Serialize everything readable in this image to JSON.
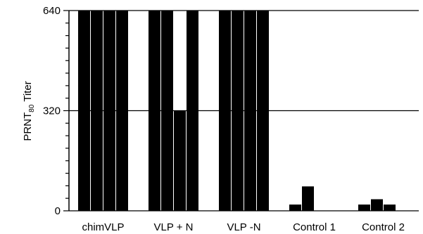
{
  "chart_data": {
    "type": "bar",
    "ylabel_main": "PRNT",
    "ylabel_sub": "80",
    "ylabel_tail": " Titer",
    "ylim": [
      0,
      640
    ],
    "yticks": [
      0,
      320,
      640
    ],
    "reference_lines": [
      320,
      640
    ],
    "grid": false,
    "categories": [
      "chimVLP",
      "VLP + N",
      "VLP -N",
      "Control 1",
      "Control 2"
    ],
    "groups": [
      {
        "category": "chimVLP",
        "values": [
          640,
          640,
          640,
          640
        ]
      },
      {
        "category": "VLP + N",
        "values": [
          640,
          640,
          320,
          640
        ]
      },
      {
        "category": "VLP -N",
        "values": [
          640,
          640,
          640,
          640
        ]
      },
      {
        "category": "Control 1",
        "values": [
          20,
          78,
          0,
          0
        ]
      },
      {
        "category": "Control 2",
        "values": [
          20,
          37,
          20,
          0
        ]
      }
    ],
    "bar_color": "#000000"
  }
}
